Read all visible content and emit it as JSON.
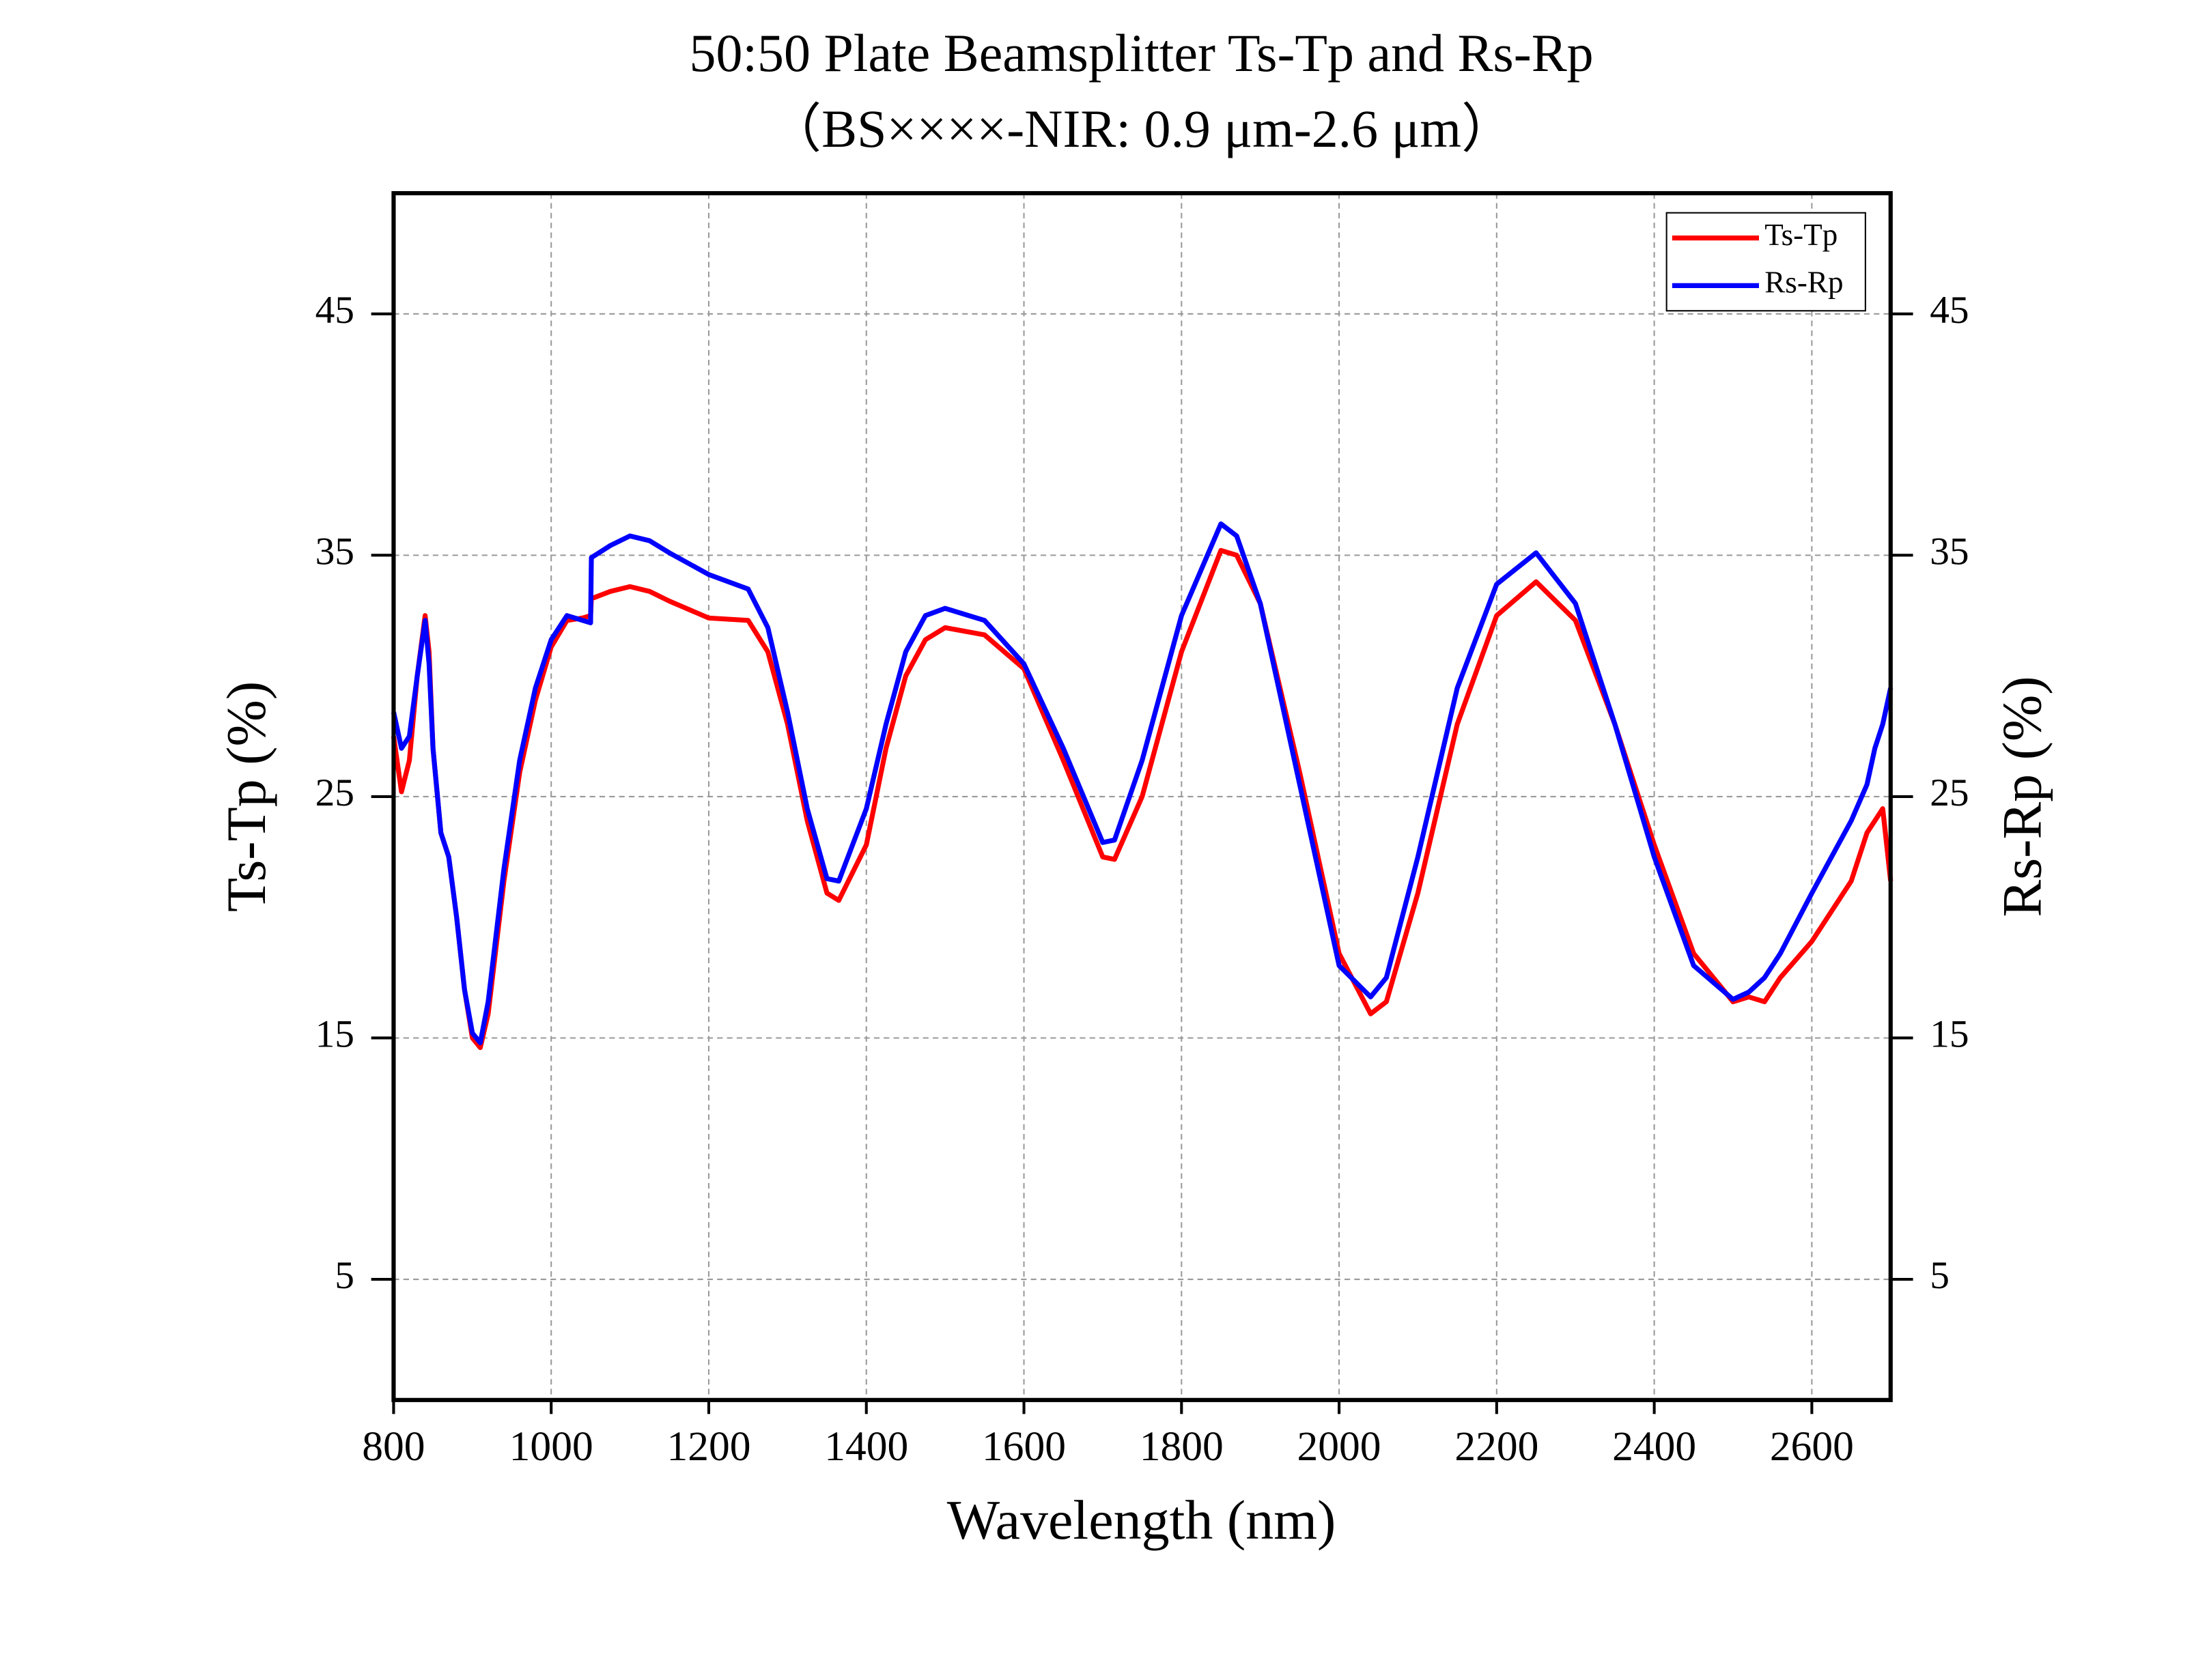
{
  "chart_data": {
    "type": "line",
    "title": "50:50 Plate Beamsplitter Ts-Tp and Rs-Rp",
    "subtitle": "（BS××××-NIR: 0.9 μm-2.6 μm）",
    "x_label": "Wavelength (nm)",
    "y_label": "Ts-Tp (%)",
    "y2_label": "Rs-Rp (%)",
    "xlim": [
      800,
      2700
    ],
    "xticks": [
      800,
      1000,
      1200,
      1400,
      1600,
      1800,
      2000,
      2200,
      2400,
      2600
    ],
    "ylim": [
      0,
      50
    ],
    "yticks": [
      5,
      15,
      25,
      35,
      45
    ],
    "y2lim": [
      0,
      50
    ],
    "y2ticks": [
      5,
      15,
      25,
      35,
      45
    ],
    "grid": true,
    "legend": "upper right",
    "x": [
      800,
      810,
      820,
      830,
      840,
      845,
      850,
      860,
      870,
      880,
      890,
      900,
      910,
      920,
      940,
      960,
      980,
      1000,
      1020,
      1040,
      1050,
      1051,
      1075,
      1100,
      1125,
      1150,
      1200,
      1250,
      1275,
      1300,
      1325,
      1350,
      1365,
      1400,
      1425,
      1450,
      1475,
      1500,
      1550,
      1600,
      1650,
      1700,
      1715,
      1750,
      1800,
      1850,
      1870,
      1900,
      1950,
      2000,
      2040,
      2060,
      2100,
      2150,
      2200,
      2250,
      2300,
      2350,
      2400,
      2450,
      2500,
      2520,
      2540,
      2560,
      2600,
      2650,
      2670,
      2680,
      2690,
      2700
    ],
    "series": [
      {
        "name": "Ts-Tp",
        "color": "#ff0000",
        "values": [
          27.5,
          25.2,
          26.5,
          30,
          32.5,
          31,
          27,
          23.5,
          22.5,
          20,
          17,
          15,
          14.6,
          16,
          21.5,
          26,
          29,
          31.2,
          32.3,
          32.4,
          32.5,
          33.2,
          33.5,
          33.7,
          33.5,
          33.1,
          32.4,
          32.3,
          31,
          28,
          24,
          21,
          20.7,
          23,
          27,
          30,
          31.5,
          32,
          31.7,
          30.3,
          26.5,
          22.5,
          22.4,
          25,
          31,
          35.2,
          35,
          33,
          26,
          18.5,
          16,
          16.5,
          21,
          28,
          32.5,
          33.9,
          32.3,
          28,
          23,
          18.5,
          16.5,
          16.7,
          16.5,
          17.5,
          19,
          21.5,
          23.5,
          24,
          24.5,
          21.5
        ]
      },
      {
        "name": "Rs-Rp",
        "color": "#0000ff",
        "axis": "y2",
        "values": [
          28.5,
          27,
          27.5,
          30,
          32.3,
          30.5,
          27,
          23.5,
          22.5,
          20,
          17,
          15.2,
          14.8,
          16.5,
          22,
          26.5,
          29.5,
          31.5,
          32.5,
          32.3,
          32.2,
          34.9,
          35.4,
          35.8,
          35.6,
          35.1,
          34.2,
          33.6,
          32,
          28.5,
          24.5,
          21.6,
          21.5,
          24.5,
          28,
          31,
          32.5,
          32.8,
          32.3,
          30.5,
          27,
          23.1,
          23.2,
          26.5,
          32.5,
          36.3,
          35.8,
          33,
          25.5,
          18,
          16.7,
          17.5,
          22.5,
          29.5,
          33.8,
          35.1,
          33,
          28,
          22.5,
          18,
          16.6,
          16.9,
          17.5,
          18.5,
          21,
          24,
          25.5,
          27,
          28,
          29.5
        ]
      }
    ]
  }
}
